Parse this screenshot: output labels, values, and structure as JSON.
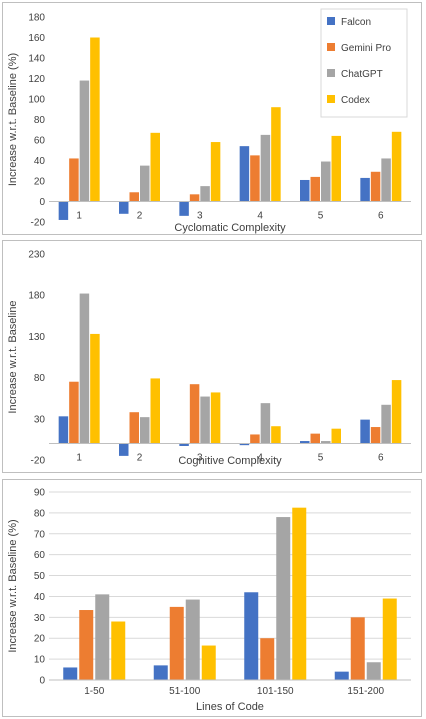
{
  "colors": {
    "Falcon": "#4472c4",
    "Gemini Pro": "#ed7d31",
    "ChatGPT": "#a5a5a5",
    "Codex": "#ffc000",
    "grid": "#d9d9d9",
    "axis": "#bfbfbf"
  },
  "legend": [
    "Falcon",
    "Gemini Pro",
    "ChatGPT",
    "Codex"
  ],
  "chart_data": [
    {
      "type": "bar",
      "xlabel": "Cyclomatic Complexity",
      "ylabel": "Increase w.r.t. Baseline (%)",
      "ylim": [
        -20,
        180
      ],
      "yticks": [
        "-20",
        "0",
        "20",
        "40",
        "60",
        "80",
        "100",
        "120",
        "140",
        "160",
        "180"
      ],
      "grid": false,
      "legend_position": "top-right",
      "categories": [
        "1",
        "2",
        "3",
        "4",
        "5",
        "6"
      ],
      "series": [
        {
          "name": "Falcon",
          "values": [
            -18,
            -12,
            -14,
            54,
            21,
            23
          ]
        },
        {
          "name": "Gemini Pro",
          "values": [
            42,
            9,
            7,
            45,
            24,
            29
          ]
        },
        {
          "name": "ChatGPT",
          "values": [
            118,
            35,
            15,
            65,
            39,
            42
          ]
        },
        {
          "name": "Codex",
          "values": [
            160,
            67,
            58,
            92,
            64,
            68
          ]
        }
      ]
    },
    {
      "type": "bar",
      "xlabel": "Cognitive Complexity",
      "ylabel": "Increase w.r.t. Baseline",
      "ylim": [
        -20,
        230
      ],
      "yticks": [
        "-20",
        "30",
        "80",
        "130",
        "180",
        "230"
      ],
      "grid": false,
      "categories": [
        "1",
        "2",
        "3",
        "4",
        "5",
        "6"
      ],
      "series": [
        {
          "name": "Falcon",
          "values": [
            33,
            -15,
            -3,
            -2,
            3,
            29
          ]
        },
        {
          "name": "Gemini Pro",
          "values": [
            75,
            38,
            72,
            11,
            12,
            20
          ]
        },
        {
          "name": "ChatGPT",
          "values": [
            182,
            32,
            57,
            49,
            3,
            47
          ]
        },
        {
          "name": "Codex",
          "values": [
            133,
            79,
            62,
            21,
            18,
            77
          ]
        }
      ]
    },
    {
      "type": "bar",
      "xlabel": "Lines of Code",
      "ylabel": "Increase w.r.t. Baseline (%)",
      "ylim": [
        0,
        90
      ],
      "yticks": [
        "0",
        "10",
        "20",
        "30",
        "40",
        "50",
        "60",
        "70",
        "80",
        "90"
      ],
      "grid": true,
      "categories": [
        "1-50",
        "51-100",
        "101-150",
        "151-200"
      ],
      "series": [
        {
          "name": "Falcon",
          "values": [
            6,
            7,
            42,
            4
          ]
        },
        {
          "name": "Gemini Pro",
          "values": [
            33.5,
            35,
            20,
            30
          ]
        },
        {
          "name": "ChatGPT",
          "values": [
            41,
            38.5,
            78,
            8.5
          ]
        },
        {
          "name": "Codex",
          "values": [
            28,
            16.5,
            82.5,
            39
          ]
        }
      ]
    }
  ]
}
